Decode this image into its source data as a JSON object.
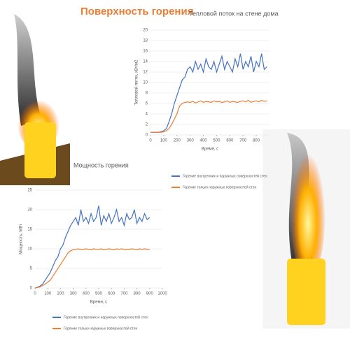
{
  "slide_title": "Поверхность горения",
  "chart_data": [
    {
      "type": "line",
      "title": "Тепловой поток на стене дома",
      "ylabel": "Тепловой поток, кВт/м2",
      "xlabel": "Время, с",
      "x": [
        0,
        20,
        40,
        60,
        80,
        100,
        120,
        140,
        160,
        180,
        200,
        220,
        240,
        260,
        280,
        300,
        320,
        340,
        360,
        380,
        400,
        420,
        440,
        460,
        480,
        500,
        520,
        540,
        560,
        580,
        600,
        620,
        640,
        660,
        680,
        700,
        720,
        740,
        760,
        780,
        800,
        820,
        840,
        860,
        880
      ],
      "xlim": [
        0,
        900
      ],
      "xticks": [
        0,
        100,
        200,
        300,
        400,
        500,
        600,
        700,
        800
      ],
      "ylim": [
        0,
        20
      ],
      "yticks": [
        0,
        2,
        4,
        6,
        8,
        10,
        12,
        14,
        16,
        18,
        20
      ],
      "series": [
        {
          "name": "Горение внутренних и наружных поверхностей стен",
          "color": "#4472c4",
          "values": [
            0.5,
            0.5,
            0.5,
            0.5,
            0.6,
            0.8,
            1.2,
            2.5,
            4,
            6,
            7.5,
            9,
            10.5,
            11,
            12.5,
            13,
            12,
            14,
            12.5,
            13.5,
            12,
            14.5,
            13,
            12.5,
            14,
            12,
            13.5,
            15,
            12.5,
            14,
            13,
            12,
            14.5,
            13,
            15.5,
            12.5,
            14,
            13,
            15,
            12,
            14,
            13,
            15.5,
            12.5,
            13
          ]
        },
        {
          "name": "Горение только наружных поверхностей стен",
          "color": "#ed7d31",
          "values": [
            0.5,
            0.5,
            0.5,
            0.5,
            0.5,
            0.6,
            0.8,
            1.2,
            2,
            3,
            4,
            5.5,
            6,
            6.2,
            6.3,
            6.2,
            6.4,
            6.1,
            6.3,
            6.5,
            6.2,
            6.4,
            6.3,
            6.2,
            6.5,
            6.3,
            6.4,
            6.2,
            6.3,
            6.5,
            6.2,
            6.4,
            6.3,
            6.2,
            6.4,
            6.5,
            6.3,
            6.6,
            6.2,
            6.4,
            6.5,
            6.3,
            6.6,
            6.4,
            6.5
          ]
        }
      ]
    },
    {
      "type": "line",
      "title": "Мощность горения",
      "ylabel": "Мощность, МВт",
      "xlabel": "Время, с",
      "x": [
        0,
        20,
        40,
        60,
        80,
        100,
        120,
        140,
        160,
        180,
        200,
        220,
        240,
        260,
        280,
        300,
        320,
        340,
        360,
        380,
        400,
        420,
        440,
        460,
        480,
        500,
        520,
        540,
        560,
        580,
        600,
        620,
        640,
        660,
        680,
        700,
        720,
        740,
        760,
        780,
        800,
        820,
        840,
        860,
        880,
        900
      ],
      "xlim": [
        0,
        1000
      ],
      "xticks": [
        0,
        100,
        200,
        300,
        400,
        500,
        600,
        700,
        800,
        900,
        1000
      ],
      "ylim": [
        0,
        25
      ],
      "yticks": [
        0,
        5,
        10,
        15,
        20,
        25
      ],
      "series": [
        {
          "name": "Горение внутренних и наружных поверхностей стен",
          "color": "#4472c4",
          "values": [
            0,
            0.2,
            0.5,
            1,
            2,
            3,
            4,
            5.5,
            7,
            8,
            10,
            11,
            13,
            14.5,
            16,
            17,
            18,
            16,
            20,
            17,
            18,
            16.5,
            19,
            17,
            18,
            21,
            16,
            18.5,
            17,
            19,
            16.5,
            18,
            20,
            17,
            18,
            16,
            19,
            17.5,
            18,
            20,
            16.5,
            18,
            17,
            19,
            17.5,
            18
          ]
        },
        {
          "name": "Горение только наружных поверхностей стен",
          "color": "#ed7d31",
          "values": [
            0,
            0.1,
            0.3,
            0.6,
            1,
            1.5,
            2,
            3,
            4,
            5,
            6,
            7,
            8,
            9,
            9.5,
            9.8,
            9.9,
            10,
            9.8,
            9.9,
            10,
            9.9,
            9.8,
            10,
            9.9,
            9.9,
            10,
            9.8,
            9.9,
            10,
            9.9,
            9.8,
            10,
            9.9,
            10,
            9.9,
            9.8,
            9.9,
            10,
            9.9,
            9.8,
            10,
            9.9,
            10,
            9.9,
            9.8
          ]
        }
      ]
    }
  ]
}
